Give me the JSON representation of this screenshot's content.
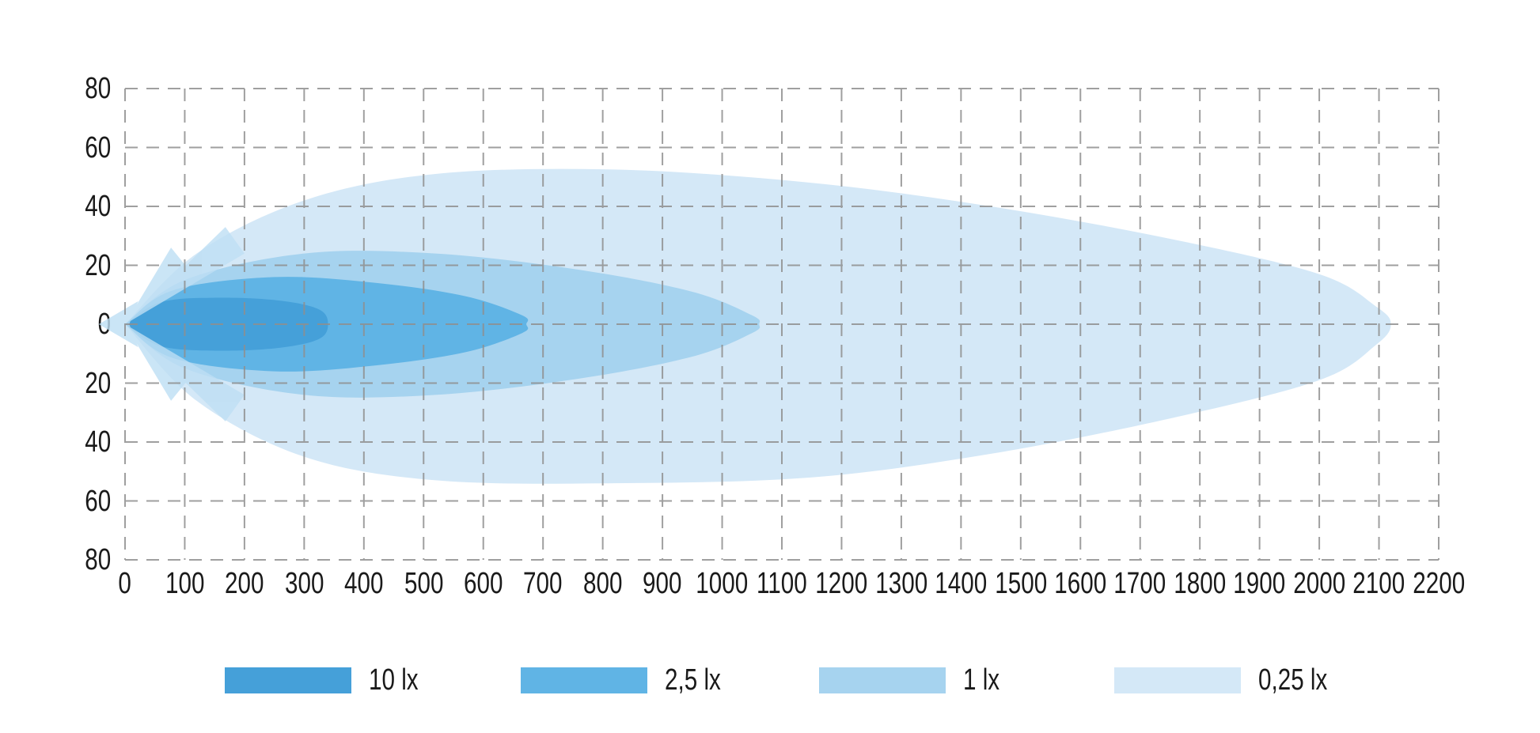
{
  "chart_data": {
    "type": "area",
    "subtype": "isolux-beam-pattern-contours",
    "title": "",
    "xlabel": "",
    "ylabel": "",
    "x_range": [
      0,
      2200
    ],
    "y_range": [
      -80,
      80
    ],
    "x_ticks": [
      0,
      100,
      200,
      300,
      400,
      500,
      600,
      700,
      800,
      900,
      1000,
      1100,
      1200,
      1300,
      1400,
      1500,
      1600,
      1700,
      1800,
      1900,
      2000,
      2100,
      2200
    ],
    "y_tick_labels": [
      "80",
      "60",
      "40",
      "20",
      "0",
      "20",
      "40",
      "60",
      "80"
    ],
    "grid": {
      "visible": true,
      "style": "dashed",
      "color": "#8f8f8f"
    },
    "legend_position": "bottom",
    "series": [
      {
        "label": "10 lx",
        "lux": 10,
        "color": "#45a0d9",
        "reach": 340,
        "max_half_width": 9,
        "outline": [
          [
            0,
            0
          ],
          [
            60,
            7.5
          ],
          [
            160,
            9
          ],
          [
            260,
            8
          ],
          [
            325,
            5
          ],
          [
            340,
            0
          ],
          [
            325,
            -5
          ],
          [
            260,
            -8
          ],
          [
            160,
            -9
          ],
          [
            60,
            -7.5
          ]
        ]
      },
      {
        "label": "2,5 lx",
        "lux": 2.5,
        "color": "#60b4e5",
        "reach": 672,
        "max_half_width": 16,
        "outline": [
          [
            0,
            0
          ],
          [
            80,
            11.5
          ],
          [
            250,
            16
          ],
          [
            420,
            14
          ],
          [
            570,
            9.5
          ],
          [
            665,
            3
          ],
          [
            672,
            0
          ],
          [
            665,
            -3
          ],
          [
            570,
            -9.5
          ],
          [
            420,
            -14
          ],
          [
            250,
            -16
          ],
          [
            80,
            -11.5
          ]
        ]
      },
      {
        "label": "1 lx",
        "lux": 1,
        "color": "#a6d3ef",
        "reach": 1062,
        "max_half_width": 24,
        "outline": [
          [
            0,
            0
          ],
          [
            100,
            15
          ],
          [
            300,
            24
          ],
          [
            520,
            24
          ],
          [
            760,
            18.5
          ],
          [
            950,
            11
          ],
          [
            1050,
            3
          ],
          [
            1062,
            0
          ],
          [
            1050,
            -3
          ],
          [
            950,
            -11
          ],
          [
            760,
            -18.5
          ],
          [
            520,
            -24
          ],
          [
            300,
            -24
          ],
          [
            100,
            -15
          ]
        ]
      },
      {
        "label": "0,25 lx",
        "lux": 0.25,
        "color": "#d4e8f7",
        "reach": 2120,
        "max_half_width": 54,
        "outline": [
          [
            0,
            0
          ],
          [
            120,
            24
          ],
          [
            300,
            42
          ],
          [
            520,
            51
          ],
          [
            820,
            52.5
          ],
          [
            1150,
            48
          ],
          [
            1450,
            40
          ],
          [
            1750,
            29
          ],
          [
            2000,
            17
          ],
          [
            2095,
            6
          ],
          [
            2120,
            0
          ],
          [
            2095,
            -7
          ],
          [
            2000,
            -19
          ],
          [
            1750,
            -32
          ],
          [
            1450,
            -44
          ],
          [
            1150,
            -52
          ],
          [
            820,
            -54
          ],
          [
            520,
            -53
          ],
          [
            300,
            -45
          ],
          [
            120,
            -26
          ]
        ]
      }
    ],
    "origin_decorations": {
      "color": "#bedff4",
      "opacity": 0.8,
      "flares": [
        [
          [
            0,
            0
          ],
          [
            168,
            33
          ],
          [
            200,
            24
          ]
        ],
        [
          [
            0,
            0
          ],
          [
            77,
            26
          ],
          [
            109,
            18
          ]
        ],
        [
          [
            0,
            0
          ],
          [
            168,
            -33
          ],
          [
            200,
            -24
          ]
        ],
        [
          [
            0,
            0
          ],
          [
            77,
            -26
          ],
          [
            109,
            -18
          ]
        ]
      ],
      "arrow": [
        [
          -44,
          0
        ],
        [
          22,
          7.8
        ],
        [
          7,
          0
        ],
        [
          22,
          -7.8
        ]
      ]
    }
  },
  "legend": {
    "entries": [
      {
        "label": "10 lx",
        "color": "#45a0d9"
      },
      {
        "label": "2,5 lx",
        "color": "#60b4e5"
      },
      {
        "label": "1 lx",
        "color": "#a6d3ef"
      },
      {
        "label": "0,25 lx",
        "color": "#d4e8f7"
      }
    ]
  }
}
